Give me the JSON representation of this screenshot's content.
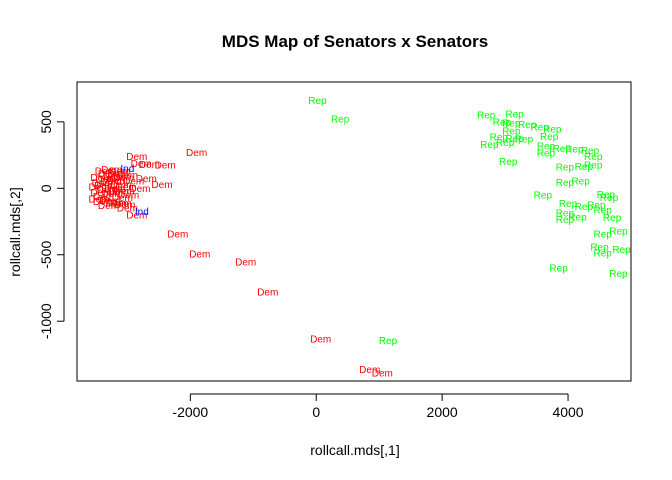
{
  "chart_data": {
    "type": "scatter",
    "title": "MDS Map of Senators x Senators",
    "xlabel": "rollcall.mds[,1]",
    "ylabel": "rollcall.mds[,2]",
    "xlim": [
      -3800,
      5000
    ],
    "ylim": [
      -1450,
      800
    ],
    "xticks": [
      -2000,
      0,
      2000,
      4000
    ],
    "yticks": [
      -1000,
      -500,
      0,
      500
    ],
    "grid": false,
    "colors": {
      "Dem": "#ff0000",
      "Rep": "#00ff00",
      "Ind": "#0000ff"
    },
    "points": [
      {
        "label": "Dem",
        "x": -3450,
        "y": 10
      },
      {
        "label": "Dem",
        "x": -3420,
        "y": -30
      },
      {
        "label": "Dem",
        "x": -3400,
        "y": 40
      },
      {
        "label": "Dem",
        "x": -3380,
        "y": -60
      },
      {
        "label": "Dem",
        "x": -3360,
        "y": 20
      },
      {
        "label": "Dem",
        "x": -3340,
        "y": 70
      },
      {
        "label": "Dem",
        "x": -3320,
        "y": -10
      },
      {
        "label": "Dem",
        "x": -3300,
        "y": 110
      },
      {
        "label": "Dem",
        "x": -3280,
        "y": -90
      },
      {
        "label": "Dem",
        "x": -3260,
        "y": 50
      },
      {
        "label": "Dem",
        "x": -3240,
        "y": -40
      },
      {
        "label": "Dem",
        "x": -3220,
        "y": 90
      },
      {
        "label": "Dem",
        "x": -3200,
        "y": 0
      },
      {
        "label": "Dem",
        "x": -3180,
        "y": -110
      },
      {
        "label": "Dem",
        "x": -3160,
        "y": 60
      },
      {
        "label": "Dem",
        "x": -3140,
        "y": -20
      },
      {
        "label": "Dem",
        "x": -3120,
        "y": 130
      },
      {
        "label": "Dem",
        "x": -3100,
        "y": 30
      },
      {
        "label": "Dem",
        "x": -3080,
        "y": -70
      },
      {
        "label": "Dem",
        "x": -3060,
        "y": 80
      },
      {
        "label": "Dem",
        "x": -3040,
        "y": -120
      },
      {
        "label": "Dem",
        "x": -3020,
        "y": 10
      },
      {
        "label": "Dem",
        "x": -3000,
        "y": 100
      },
      {
        "label": "Dem",
        "x": -2980,
        "y": -50
      },
      {
        "label": "Dem",
        "x": -3420,
        "y": 80
      },
      {
        "label": "Dem",
        "x": -3380,
        "y": -100
      },
      {
        "label": "Dem",
        "x": -3300,
        "y": -130
      },
      {
        "label": "Dem",
        "x": -3250,
        "y": 140
      },
      {
        "label": "Dem",
        "x": -3150,
        "y": 110
      },
      {
        "label": "Dem",
        "x": -3050,
        "y": -20
      },
      {
        "label": "Dem",
        "x": -3450,
        "y": -80
      },
      {
        "label": "Dem",
        "x": -3350,
        "y": 130
      },
      {
        "label": "Dem",
        "x": -2850,
        "y": 240
      },
      {
        "label": "Dem",
        "x": -2780,
        "y": 185
      },
      {
        "label": "Dem",
        "x": -2650,
        "y": 180
      },
      {
        "label": "Dem",
        "x": -2400,
        "y": 175
      },
      {
        "label": "Dem",
        "x": -2700,
        "y": 75
      },
      {
        "label": "Dem",
        "x": -2900,
        "y": 55
      },
      {
        "label": "Dem",
        "x": -2450,
        "y": 30
      },
      {
        "label": "Dem",
        "x": -2800,
        "y": 0
      },
      {
        "label": "Dem",
        "x": -3100,
        "y": -110
      },
      {
        "label": "Dem",
        "x": -3000,
        "y": -150
      },
      {
        "label": "Dem",
        "x": -2850,
        "y": -200
      },
      {
        "label": "Dem",
        "x": -1900,
        "y": 270
      },
      {
        "label": "Dem",
        "x": -2200,
        "y": -345
      },
      {
        "label": "Dem",
        "x": -1850,
        "y": -495
      },
      {
        "label": "Dem",
        "x": -1120,
        "y": -555
      },
      {
        "label": "Dem",
        "x": -770,
        "y": -780
      },
      {
        "label": "Dem",
        "x": 70,
        "y": -1135
      },
      {
        "label": "Dem",
        "x": 850,
        "y": -1365
      },
      {
        "label": "Dem",
        "x": 1050,
        "y": -1390
      },
      {
        "label": "Ind",
        "x": -3000,
        "y": 150
      },
      {
        "label": "Ind",
        "x": -2770,
        "y": -175
      },
      {
        "label": "Rep",
        "x": 20,
        "y": 660
      },
      {
        "label": "Rep",
        "x": 380,
        "y": 520
      },
      {
        "label": "Rep",
        "x": 1140,
        "y": -1145
      },
      {
        "label": "Rep",
        "x": 2700,
        "y": 550
      },
      {
        "label": "Rep",
        "x": 2950,
        "y": 500
      },
      {
        "label": "Rep",
        "x": 3150,
        "y": 560
      },
      {
        "label": "Rep",
        "x": 3100,
        "y": 490
      },
      {
        "label": "Rep",
        "x": 3350,
        "y": 480
      },
      {
        "label": "Rep",
        "x": 3550,
        "y": 460
      },
      {
        "label": "Rep",
        "x": 3750,
        "y": 445
      },
      {
        "label": "Rep",
        "x": 3100,
        "y": 430
      },
      {
        "label": "Rep",
        "x": 2900,
        "y": 385
      },
      {
        "label": "Rep",
        "x": 3150,
        "y": 375
      },
      {
        "label": "Rep",
        "x": 3300,
        "y": 370
      },
      {
        "label": "Rep",
        "x": 3700,
        "y": 390
      },
      {
        "label": "Rep",
        "x": 2750,
        "y": 330
      },
      {
        "label": "Rep",
        "x": 3000,
        "y": 345
      },
      {
        "label": "Rep",
        "x": 3650,
        "y": 320
      },
      {
        "label": "Rep",
        "x": 3900,
        "y": 300
      },
      {
        "label": "Rep",
        "x": 4100,
        "y": 295
      },
      {
        "label": "Rep",
        "x": 4350,
        "y": 285
      },
      {
        "label": "Rep",
        "x": 3650,
        "y": 265
      },
      {
        "label": "Rep",
        "x": 4400,
        "y": 240
      },
      {
        "label": "Rep",
        "x": 3050,
        "y": 200
      },
      {
        "label": "Rep",
        "x": 3950,
        "y": 160
      },
      {
        "label": "Rep",
        "x": 4250,
        "y": 165
      },
      {
        "label": "Rep",
        "x": 4400,
        "y": 175
      },
      {
        "label": "Rep",
        "x": 3950,
        "y": 45
      },
      {
        "label": "Rep",
        "x": 4200,
        "y": 55
      },
      {
        "label": "Rep",
        "x": 3600,
        "y": -50
      },
      {
        "label": "Rep",
        "x": 4600,
        "y": -45
      },
      {
        "label": "Rep",
        "x": 4650,
        "y": -70
      },
      {
        "label": "Rep",
        "x": 4000,
        "y": -115
      },
      {
        "label": "Rep",
        "x": 4250,
        "y": -135
      },
      {
        "label": "Rep",
        "x": 4450,
        "y": -125
      },
      {
        "label": "Rep",
        "x": 4550,
        "y": -165
      },
      {
        "label": "Rep",
        "x": 3950,
        "y": -185
      },
      {
        "label": "Rep",
        "x": 4150,
        "y": -215
      },
      {
        "label": "Rep",
        "x": 3950,
        "y": -235
      },
      {
        "label": "Rep",
        "x": 4700,
        "y": -220
      },
      {
        "label": "Rep",
        "x": 4800,
        "y": -320
      },
      {
        "label": "Rep",
        "x": 4550,
        "y": -345
      },
      {
        "label": "Rep",
        "x": 4500,
        "y": -440
      },
      {
        "label": "Rep",
        "x": 4550,
        "y": -485
      },
      {
        "label": "Rep",
        "x": 4850,
        "y": -460
      },
      {
        "label": "Rep",
        "x": 3850,
        "y": -600
      },
      {
        "label": "Rep",
        "x": 4800,
        "y": -640
      }
    ]
  }
}
